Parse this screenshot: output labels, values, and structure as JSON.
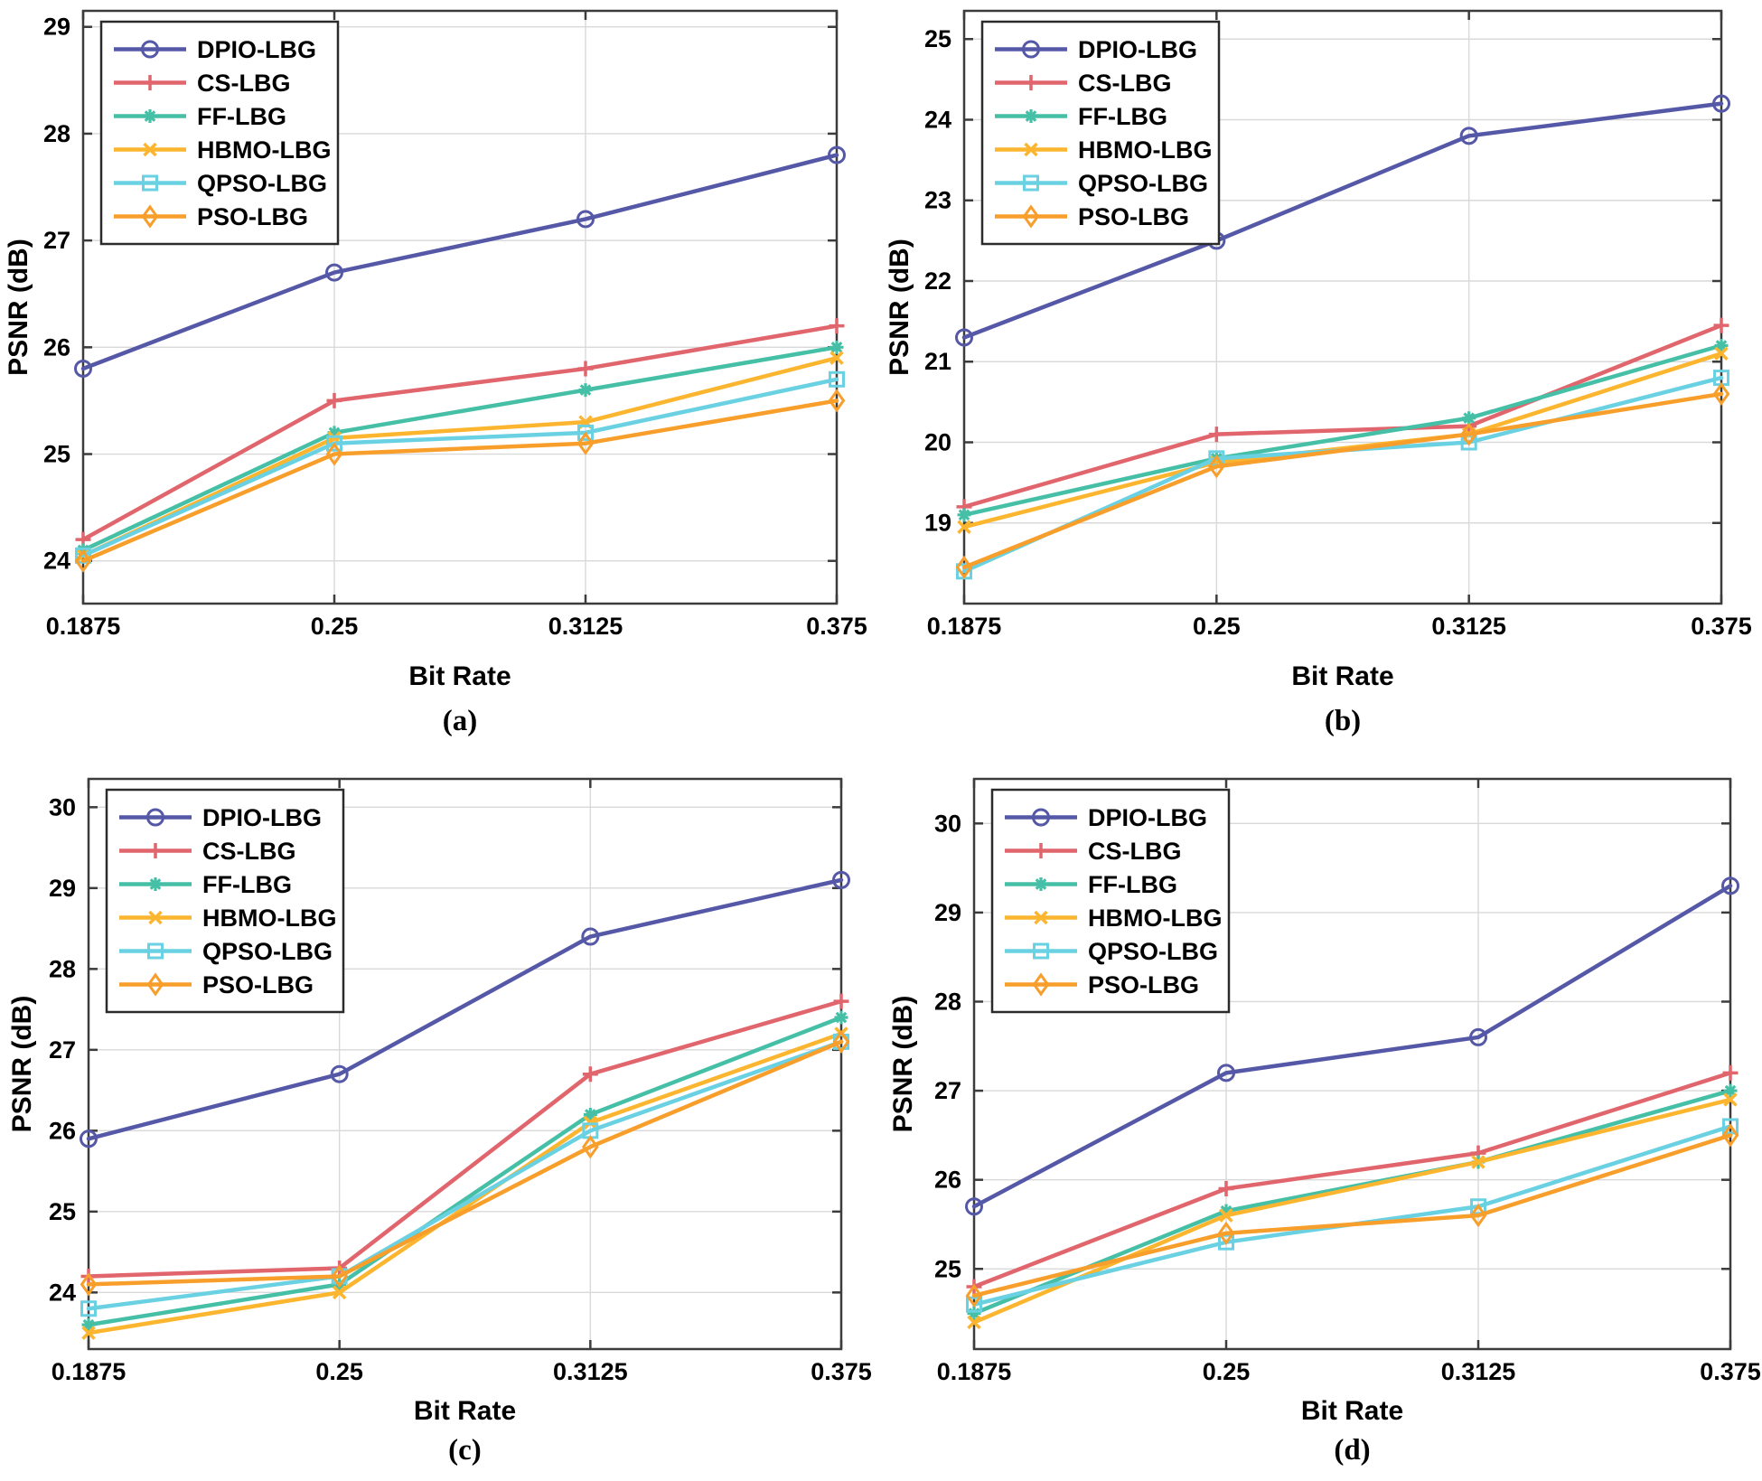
{
  "figure": {
    "ylabel": "PSNR (dB)",
    "xlabel": "Bit Rate",
    "series_names": [
      "DPIO-LBG",
      "CS-LBG",
      "FF-LBG",
      "HBMO-LBG",
      "QPSO-LBG",
      "PSO-LBG"
    ],
    "colors": {
      "dpio": "#5558A7",
      "cs": "#E1656C",
      "ff": "#45BFA6",
      "hbmo": "#FCB52F",
      "qpso": "#6AD1E3",
      "pso": "#F89E2B",
      "grid": "#d9d9d9",
      "axis": "#3c3c3c",
      "text": "#000000"
    }
  },
  "chart_data": [
    {
      "type": "line",
      "caption": "(a)",
      "xlabel": "Bit Rate",
      "ylabel": "PSNR (dB)",
      "x": [
        0.1875,
        0.25,
        0.3125,
        0.375
      ],
      "xtick_labels": [
        "0.1875",
        "0.25",
        "0.3125",
        "0.375"
      ],
      "yticks": [
        24,
        25,
        26,
        27,
        28,
        29
      ],
      "ylim": [
        23.6,
        29.15
      ],
      "grid": true,
      "legend_position": "top-left",
      "series": [
        {
          "name": "DPIO-LBG",
          "color": "#5558A7",
          "marker": "circle",
          "values": [
            25.8,
            26.7,
            27.2,
            27.8
          ]
        },
        {
          "name": "CS-LBG",
          "color": "#E1656C",
          "marker": "plus",
          "values": [
            24.2,
            25.5,
            25.8,
            26.2
          ]
        },
        {
          "name": "FF-LBG",
          "color": "#45BFA6",
          "marker": "asterisk",
          "values": [
            24.1,
            25.2,
            25.6,
            26.0
          ]
        },
        {
          "name": "HBMO-LBG",
          "color": "#FCB52F",
          "marker": "x",
          "values": [
            24.05,
            25.15,
            25.3,
            25.9
          ]
        },
        {
          "name": "QPSO-LBG",
          "color": "#6AD1E3",
          "marker": "square",
          "values": [
            24.05,
            25.1,
            25.2,
            25.7
          ]
        },
        {
          "name": "PSO-LBG",
          "color": "#F89E2B",
          "marker": "diamond",
          "values": [
            24.0,
            25.0,
            25.1,
            25.5
          ]
        }
      ]
    },
    {
      "type": "line",
      "caption": "(b)",
      "xlabel": "Bit Rate",
      "ylabel": "PSNR (dB)",
      "x": [
        0.1875,
        0.25,
        0.3125,
        0.375
      ],
      "xtick_labels": [
        "0.1875",
        "0.25",
        "0.3125",
        "0.375"
      ],
      "yticks": [
        19,
        20,
        21,
        22,
        23,
        24,
        25
      ],
      "ylim": [
        18.0,
        25.35
      ],
      "grid": true,
      "legend_position": "top-left",
      "series": [
        {
          "name": "DPIO-LBG",
          "color": "#5558A7",
          "marker": "circle",
          "values": [
            21.3,
            22.5,
            23.8,
            24.2
          ]
        },
        {
          "name": "CS-LBG",
          "color": "#E1656C",
          "marker": "plus",
          "values": [
            19.2,
            20.1,
            20.2,
            21.45
          ]
        },
        {
          "name": "FF-LBG",
          "color": "#45BFA6",
          "marker": "asterisk",
          "values": [
            19.1,
            19.8,
            20.3,
            21.2
          ]
        },
        {
          "name": "HBMO-LBG",
          "color": "#FCB52F",
          "marker": "x",
          "values": [
            18.95,
            19.75,
            20.1,
            21.1
          ]
        },
        {
          "name": "QPSO-LBG",
          "color": "#6AD1E3",
          "marker": "square",
          "values": [
            18.4,
            19.8,
            20.0,
            20.8
          ]
        },
        {
          "name": "PSO-LBG",
          "color": "#F89E2B",
          "marker": "diamond",
          "values": [
            18.45,
            19.7,
            20.1,
            20.6
          ]
        }
      ]
    },
    {
      "type": "line",
      "caption": "(c)",
      "xlabel": "Bit Rate",
      "ylabel": "PSNR (dB)",
      "x": [
        0.1875,
        0.25,
        0.3125,
        0.375
      ],
      "xtick_labels": [
        "0.1875",
        "0.25",
        "0.3125",
        "0.375"
      ],
      "yticks": [
        24,
        25,
        26,
        27,
        28,
        29,
        30
      ],
      "ylim": [
        23.3,
        30.35
      ],
      "grid": true,
      "legend_position": "top-left",
      "series": [
        {
          "name": "DPIO-LBG",
          "color": "#5558A7",
          "marker": "circle",
          "values": [
            25.9,
            26.7,
            28.4,
            29.1
          ]
        },
        {
          "name": "CS-LBG",
          "color": "#E1656C",
          "marker": "plus",
          "values": [
            24.2,
            24.3,
            26.7,
            27.6
          ]
        },
        {
          "name": "FF-LBG",
          "color": "#45BFA6",
          "marker": "asterisk",
          "values": [
            23.6,
            24.1,
            26.2,
            27.4
          ]
        },
        {
          "name": "HBMO-LBG",
          "color": "#FCB52F",
          "marker": "x",
          "values": [
            23.5,
            24.0,
            26.1,
            27.2
          ]
        },
        {
          "name": "QPSO-LBG",
          "color": "#6AD1E3",
          "marker": "square",
          "values": [
            23.8,
            24.2,
            26.0,
            27.1
          ]
        },
        {
          "name": "PSO-LBG",
          "color": "#F89E2B",
          "marker": "diamond",
          "values": [
            24.1,
            24.2,
            25.8,
            27.1
          ]
        }
      ]
    },
    {
      "type": "line",
      "caption": "(d)",
      "xlabel": "Bit Rate",
      "ylabel": "PSNR (dB)",
      "x": [
        0.1875,
        0.25,
        0.3125,
        0.375
      ],
      "xtick_labels": [
        "0.1875",
        "0.25",
        "0.3125",
        "0.375"
      ],
      "yticks": [
        25,
        26,
        27,
        28,
        29,
        30
      ],
      "ylim": [
        24.1,
        30.5
      ],
      "grid": true,
      "legend_position": "top-left",
      "series": [
        {
          "name": "DPIO-LBG",
          "color": "#5558A7",
          "marker": "circle",
          "values": [
            25.7,
            27.2,
            27.6,
            29.3
          ]
        },
        {
          "name": "CS-LBG",
          "color": "#E1656C",
          "marker": "plus",
          "values": [
            24.8,
            25.9,
            26.3,
            27.2
          ]
        },
        {
          "name": "FF-LBG",
          "color": "#45BFA6",
          "marker": "asterisk",
          "values": [
            24.5,
            25.65,
            26.2,
            27.0
          ]
        },
        {
          "name": "HBMO-LBG",
          "color": "#FCB52F",
          "marker": "x",
          "values": [
            24.4,
            25.6,
            26.2,
            26.9
          ]
        },
        {
          "name": "QPSO-LBG",
          "color": "#6AD1E3",
          "marker": "square",
          "values": [
            24.6,
            25.3,
            25.7,
            26.6
          ]
        },
        {
          "name": "PSO-LBG",
          "color": "#F89E2B",
          "marker": "diamond",
          "values": [
            24.7,
            25.4,
            25.6,
            26.5
          ]
        }
      ]
    }
  ]
}
